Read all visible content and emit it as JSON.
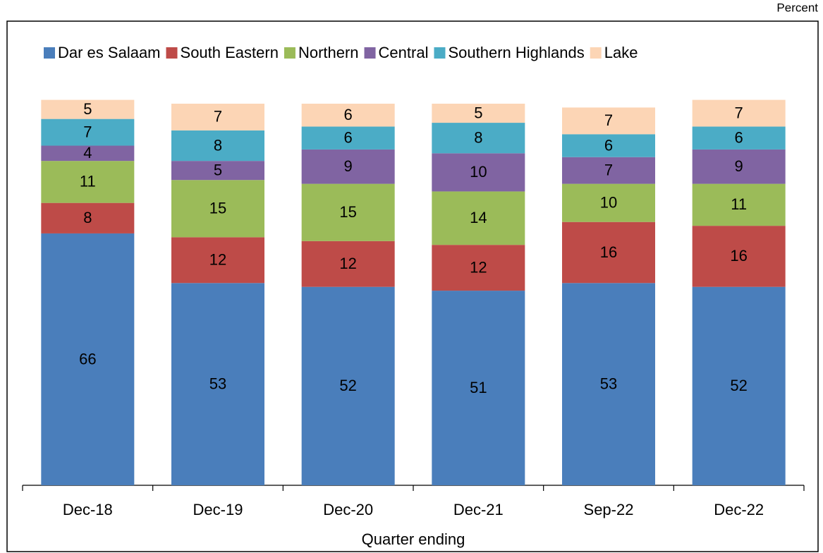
{
  "chart_data": {
    "type": "stacked_bar",
    "unit_label": "Percent",
    "x_label": "Quarter ending",
    "categories": [
      "Dec-18",
      "Dec-19",
      "Dec-20",
      "Dec-21",
      "Sep-22",
      "Dec-22"
    ],
    "series": [
      {
        "name": "Dar es Salaam",
        "color": "#4a7ebb",
        "values": [
          66,
          53,
          52,
          51,
          53,
          52
        ]
      },
      {
        "name": "South Eastern",
        "color": "#be4b48",
        "values": [
          8,
          12,
          12,
          12,
          16,
          16
        ]
      },
      {
        "name": "Northern",
        "color": "#9bbb59",
        "values": [
          11,
          15,
          15,
          14,
          10,
          11
        ]
      },
      {
        "name": "Central",
        "color": "#8064a2",
        "values": [
          4,
          5,
          9,
          10,
          7,
          9
        ]
      },
      {
        "name": "Southern Highlands",
        "color": "#4bacc6",
        "values": [
          7,
          8,
          6,
          8,
          6,
          6
        ]
      },
      {
        "name": "Lake",
        "color": "#fcd5b5",
        "values": [
          5,
          7,
          6,
          5,
          7,
          7
        ]
      }
    ],
    "ylim": [
      0,
      100
    ],
    "legend": "top"
  }
}
